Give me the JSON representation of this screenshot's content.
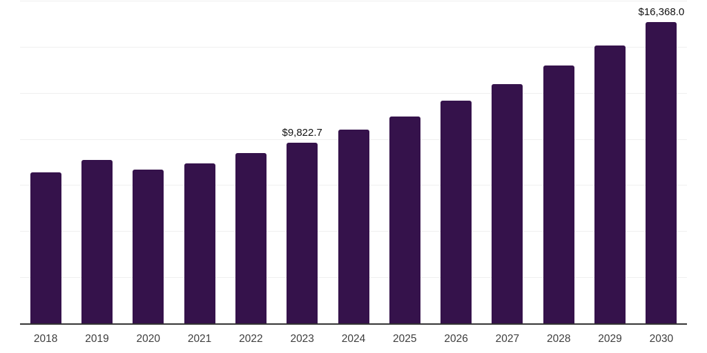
{
  "chart_data": {
    "type": "bar",
    "title": "",
    "xlabel": "",
    "ylabel": "",
    "categories": [
      "2018",
      "2019",
      "2020",
      "2021",
      "2022",
      "2023",
      "2024",
      "2025",
      "2026",
      "2027",
      "2028",
      "2029",
      "2030"
    ],
    "values": [
      8240,
      8900,
      8390,
      8720,
      9280,
      9822.7,
      10540,
      11240,
      12100,
      13020,
      14010,
      15090,
      16368.0
    ],
    "data_labels": [
      "",
      "",
      "",
      "",
      "",
      "$9,822.7",
      "",
      "",
      "",
      "",
      "",
      "",
      "$16,368.0"
    ],
    "ylim": [
      0,
      17500
    ],
    "gridline_interval": 2500,
    "grid": "horizontal-only",
    "legend_position": "none",
    "y_axis_labels_visible": false,
    "colors": {
      "bar": "#35124B",
      "gridline": "#efefef",
      "axis_line": "#333333",
      "tick_label": "#3d3d3d",
      "data_label": "#111111",
      "background": "#ffffff"
    }
  }
}
